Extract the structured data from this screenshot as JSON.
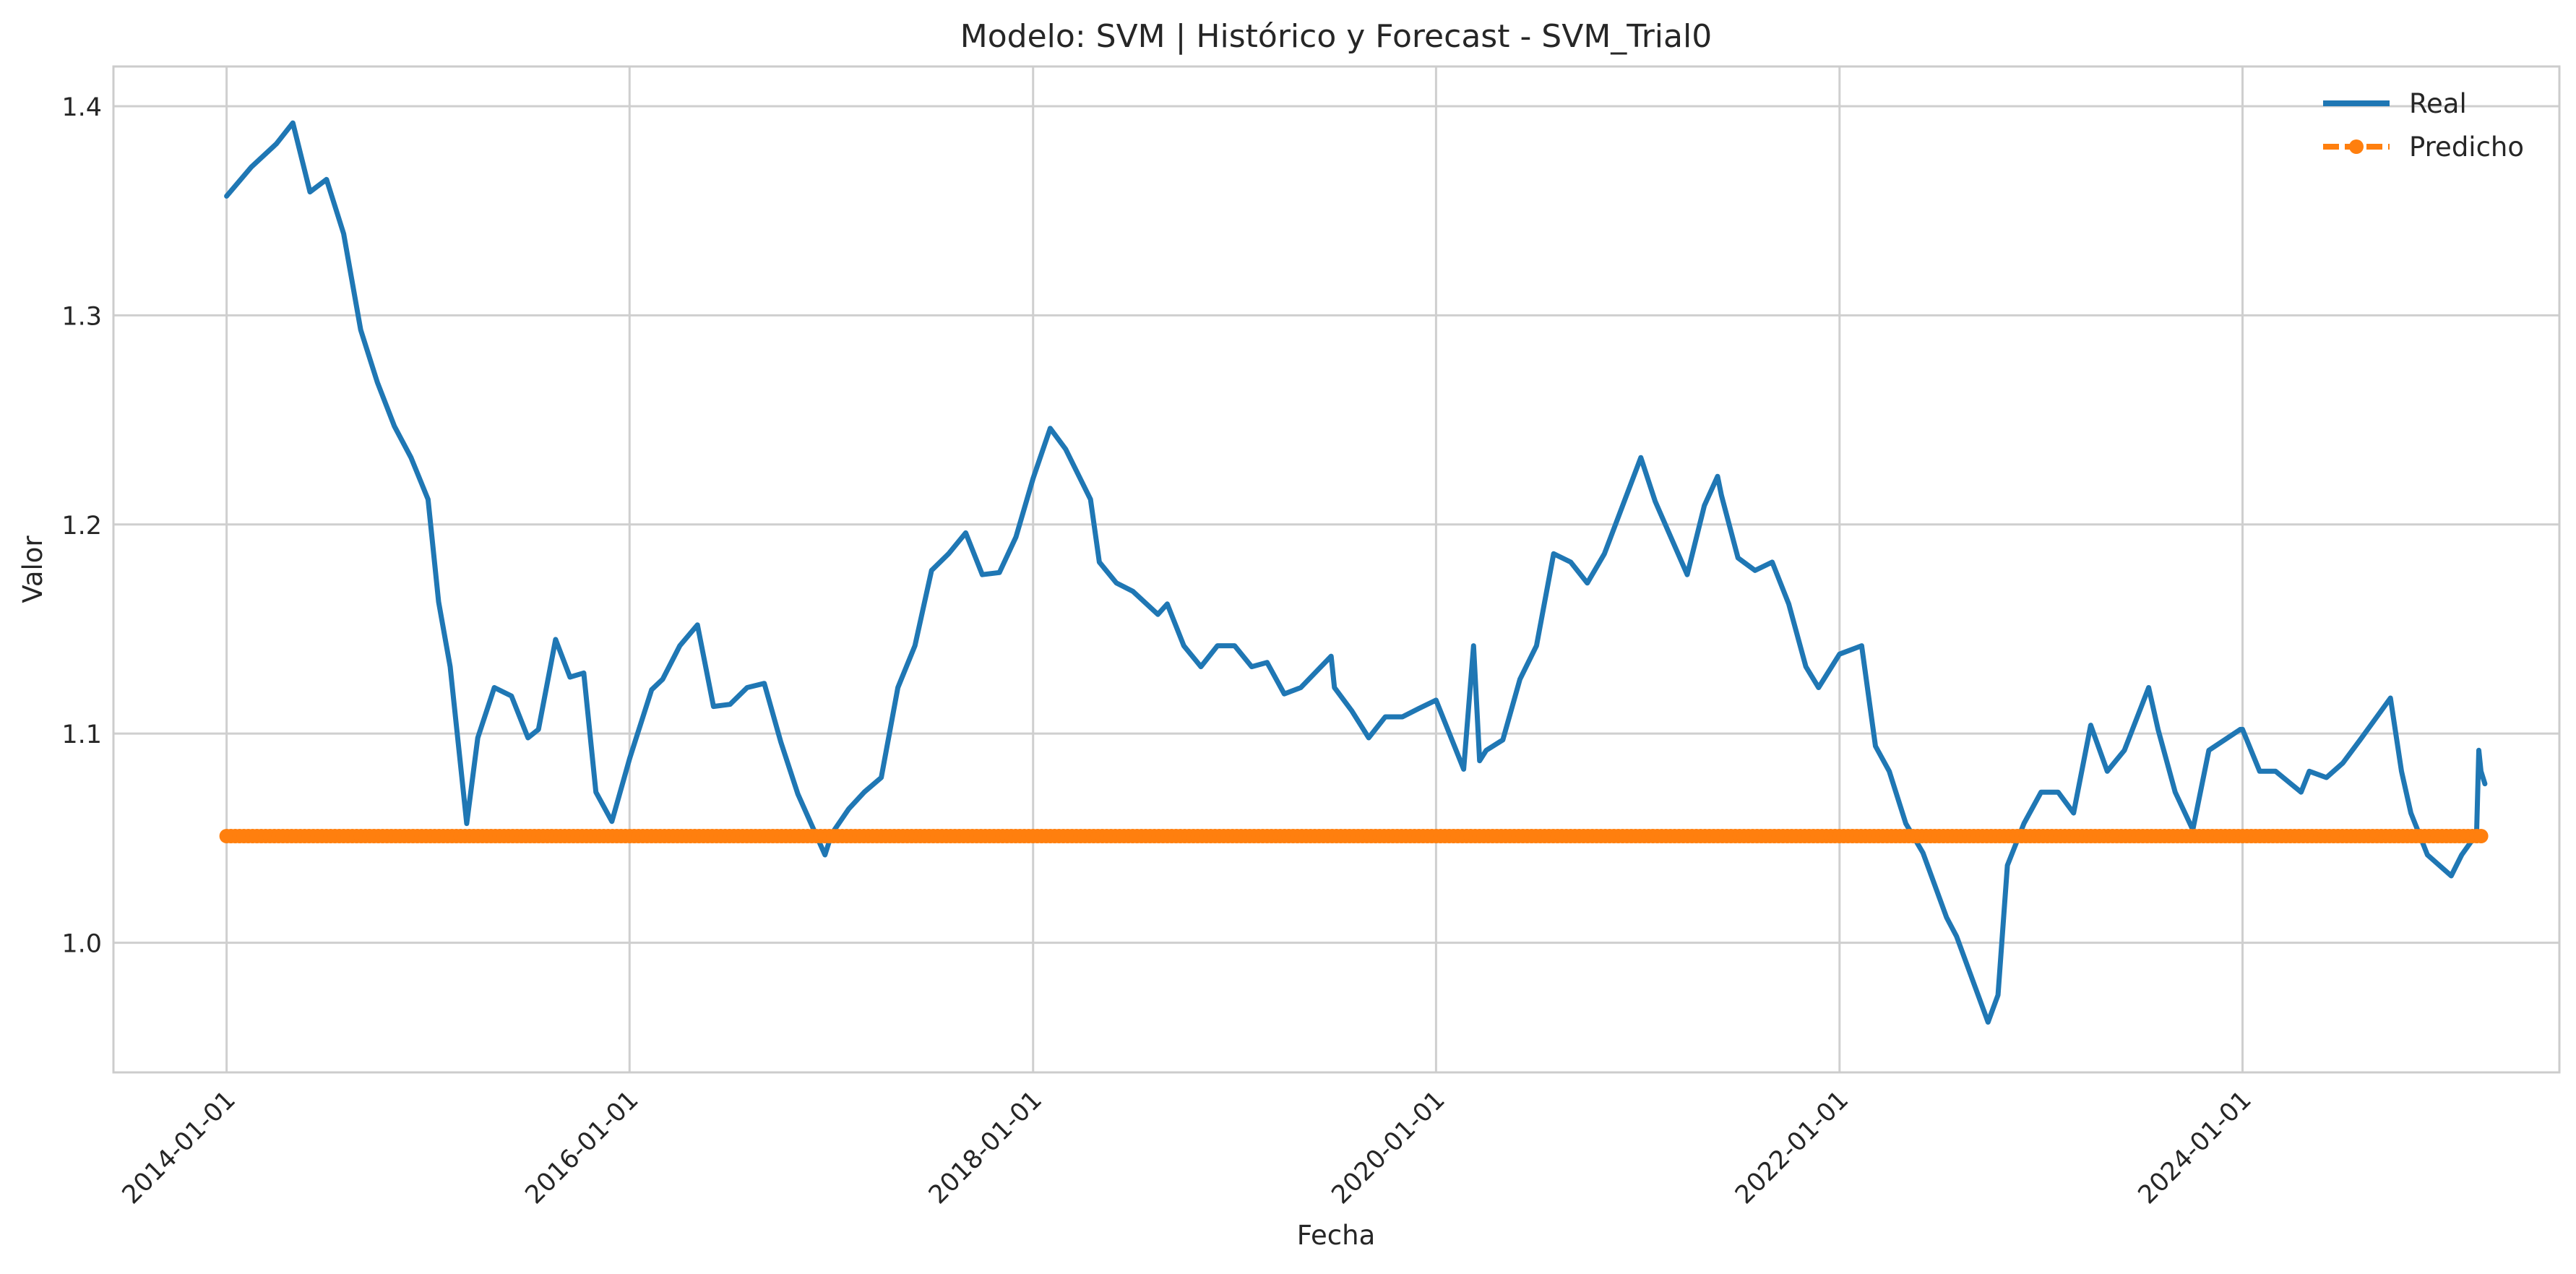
{
  "chart_data": {
    "type": "line",
    "title": "Modelo: SVM | Histórico y Forecast - SVM_Trial0",
    "xlabel": "Fecha",
    "ylabel": "Valor",
    "x_axis_type": "date",
    "xlim": [
      "2013-06-10",
      "2025-07-28"
    ],
    "ylim": [
      0.938,
      1.419
    ],
    "x_ticks": [
      "2014-01-01",
      "2016-01-01",
      "2018-01-01",
      "2020-01-01",
      "2022-01-01",
      "2024-01-01"
    ],
    "y_ticks": [
      "1.0",
      "1.1",
      "1.2",
      "1.3",
      "1.4"
    ],
    "grid": true,
    "legend": "top-right",
    "colors": {
      "real": "#1f77b4",
      "predicho": "#ff7f0e",
      "grid": "#cfcfcf",
      "axes": "#cccccc"
    },
    "series": [
      {
        "name": "Real",
        "style": "solid",
        "x": [
          "2014-01-01",
          "2014-02-15",
          "2014-04-01",
          "2014-05-01",
          "2014-06-01",
          "2014-07-01",
          "2014-08-01",
          "2014-09-01",
          "2014-10-01",
          "2014-11-01",
          "2014-12-01",
          "2015-01-01",
          "2015-01-20",
          "2015-02-10",
          "2015-03-12",
          "2015-04-01",
          "2015-05-01",
          "2015-06-01",
          "2015-07-01",
          "2015-07-20",
          "2015-08-20",
          "2015-09-15",
          "2015-10-10",
          "2015-11-01",
          "2015-11-30",
          "2016-01-01",
          "2016-02-10",
          "2016-03-01",
          "2016-04-01",
          "2016-05-03",
          "2016-06-01",
          "2016-07-01",
          "2016-08-01",
          "2016-09-01",
          "2016-10-01",
          "2016-11-01",
          "2016-12-20",
          "2017-01-01",
          "2017-02-01",
          "2017-03-01",
          "2017-04-01",
          "2017-05-01",
          "2017-06-01",
          "2017-07-01",
          "2017-08-01",
          "2017-09-01",
          "2017-10-01",
          "2017-11-01",
          "2017-12-01",
          "2018-01-01",
          "2018-02-01",
          "2018-03-01",
          "2018-04-15",
          "2018-05-01",
          "2018-06-01",
          "2018-07-01",
          "2018-08-15",
          "2018-09-01",
          "2018-10-01",
          "2018-11-01",
          "2018-12-01",
          "2019-01-01",
          "2019-02-01",
          "2019-03-01",
          "2019-04-01",
          "2019-05-01",
          "2019-06-25",
          "2019-07-01",
          "2019-08-01",
          "2019-09-01",
          "2019-10-01",
          "2019-11-01",
          "2019-12-01",
          "2020-01-01",
          "2020-02-20",
          "2020-03-09",
          "2020-03-20",
          "2020-04-01",
          "2020-05-01",
          "2020-06-01",
          "2020-07-01",
          "2020-08-01",
          "2020-09-01",
          "2020-10-01",
          "2020-11-01",
          "2021-01-06",
          "2021-02-01",
          "2021-03-31",
          "2021-05-01",
          "2021-05-25",
          "2021-06-01",
          "2021-07-01",
          "2021-08-01",
          "2021-09-01",
          "2021-10-01",
          "2021-11-01",
          "2021-11-24",
          "2022-01-01",
          "2022-02-10",
          "2022-03-07",
          "2022-04-01",
          "2022-05-01",
          "2022-06-01",
          "2022-07-14",
          "2022-08-01",
          "2022-09-27",
          "2022-10-15",
          "2022-11-01",
          "2022-12-01",
          "2023-01-01",
          "2023-02-01",
          "2023-03-01",
          "2023-04-01",
          "2023-05-01",
          "2023-06-01",
          "2023-07-15",
          "2023-08-01",
          "2023-09-01",
          "2023-10-03",
          "2023-11-01",
          "2023-12-28",
          "2024-01-01",
          "2024-02-01",
          "2024-03-01",
          "2024-04-16",
          "2024-05-01",
          "2024-06-01",
          "2024-07-01",
          "2024-08-01",
          "2024-09-25",
          "2024-10-15",
          "2024-11-01",
          "2024-12-01",
          "2025-01-13",
          "2025-02-01",
          "2025-02-28",
          "2025-03-04",
          "2025-03-08",
          "2025-03-15"
        ],
        "y": [
          1.357,
          1.371,
          1.382,
          1.392,
          1.359,
          1.365,
          1.339,
          1.293,
          1.268,
          1.247,
          1.232,
          1.212,
          1.163,
          1.132,
          1.057,
          1.098,
          1.122,
          1.118,
          1.098,
          1.102,
          1.145,
          1.127,
          1.129,
          1.072,
          1.058,
          1.088,
          1.121,
          1.126,
          1.142,
          1.152,
          1.113,
          1.114,
          1.122,
          1.124,
          1.096,
          1.071,
          1.042,
          1.052,
          1.064,
          1.072,
          1.079,
          1.122,
          1.142,
          1.178,
          1.186,
          1.196,
          1.176,
          1.177,
          1.194,
          1.222,
          1.246,
          1.236,
          1.212,
          1.182,
          1.172,
          1.168,
          1.157,
          1.162,
          1.142,
          1.132,
          1.142,
          1.142,
          1.132,
          1.134,
          1.119,
          1.122,
          1.137,
          1.122,
          1.111,
          1.098,
          1.108,
          1.108,
          1.112,
          1.116,
          1.083,
          1.142,
          1.087,
          1.092,
          1.097,
          1.126,
          1.142,
          1.186,
          1.182,
          1.172,
          1.186,
          1.232,
          1.211,
          1.176,
          1.209,
          1.223,
          1.214,
          1.184,
          1.178,
          1.182,
          1.162,
          1.132,
          1.122,
          1.138,
          1.142,
          1.094,
          1.082,
          1.057,
          1.043,
          1.012,
          1.003,
          0.962,
          0.975,
          1.037,
          1.057,
          1.072,
          1.072,
          1.062,
          1.104,
          1.082,
          1.092,
          1.122,
          1.102,
          1.072,
          1.054,
          1.092,
          1.102,
          1.102,
          1.082,
          1.082,
          1.072,
          1.082,
          1.079,
          1.086,
          1.097,
          1.117,
          1.082,
          1.062,
          1.042,
          1.032,
          1.042,
          1.052,
          1.092,
          1.082,
          1.076
        ]
      },
      {
        "name": "Predicho",
        "style": "dashed-markers",
        "x": [
          "2014-01-01",
          "2025-03-15"
        ],
        "y": [
          1.051,
          1.051
        ]
      }
    ]
  }
}
